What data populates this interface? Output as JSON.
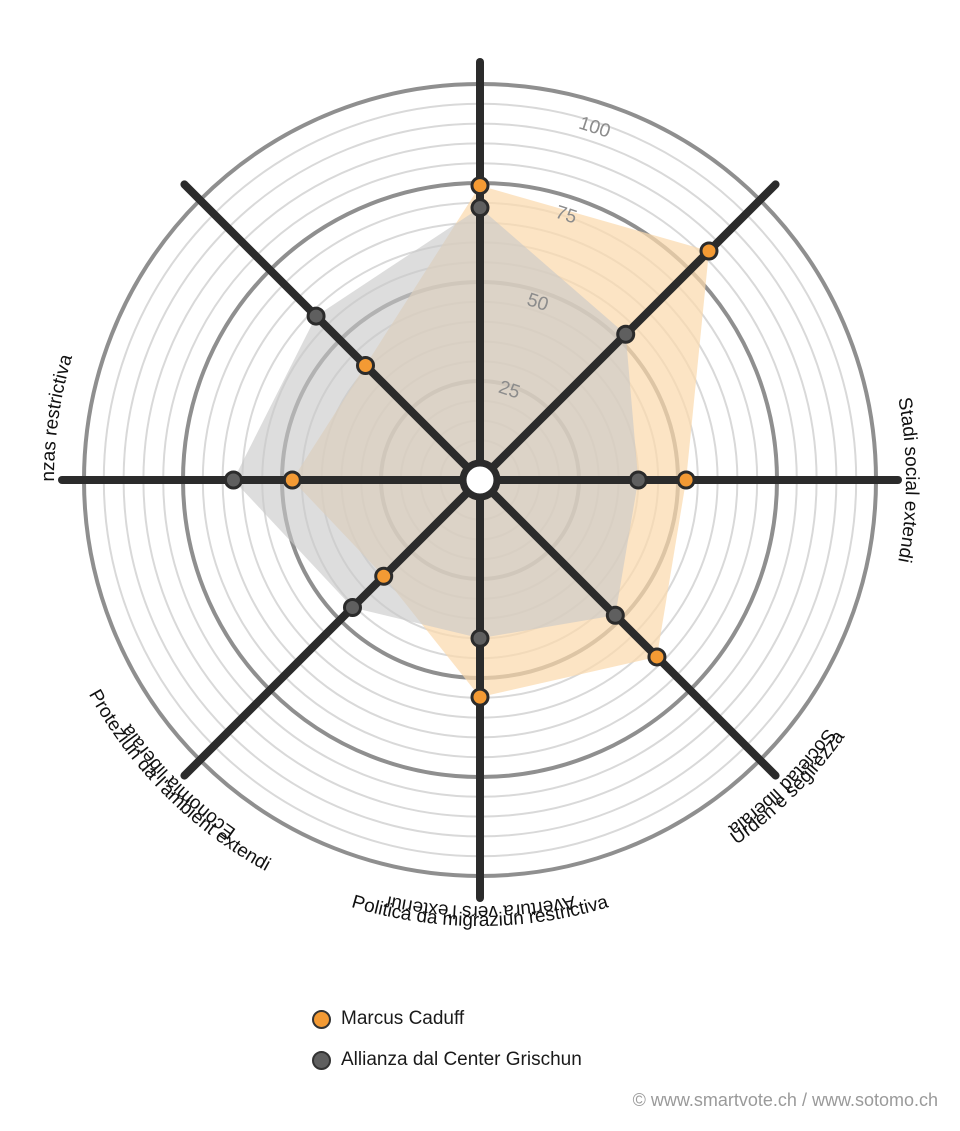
{
  "chart_data": {
    "type": "radar",
    "axes": [
      "Avertura vers l'exteriur",
      "Economia liberala",
      "Politica da finanzas restrictiva",
      "Urden e segirezza",
      "Politica da migraziun restrictiva",
      "Proteziun da l'ambient extendi",
      "Stadi social extendi",
      "Societad liberala"
    ],
    "rlim": [
      0,
      100
    ],
    "ticks": [
      25,
      50,
      75,
      100
    ],
    "grid": true,
    "series": [
      {
        "name": "Marcus Caduff",
        "color": "#f39a34",
        "fill": "#fbd9ad",
        "values": [
          80,
          88,
          56,
          68,
          59,
          37,
          51,
          44
        ]
      },
      {
        "name": "Allianza dal Center Grischun",
        "color": "#5f5f5f",
        "fill": "#c8c8c8",
        "values": [
          74,
          56,
          43,
          52,
          43,
          49,
          67,
          63
        ]
      }
    ],
    "legend_position": "bottom-left"
  },
  "legend": {
    "items": [
      {
        "label": "Marcus Caduff",
        "color": "#f39a34"
      },
      {
        "label": "Allianza dal Center Grischun",
        "color": "#5f5f5f"
      }
    ]
  },
  "credit": "© www.smartvote.ch / www.sotomo.ch"
}
